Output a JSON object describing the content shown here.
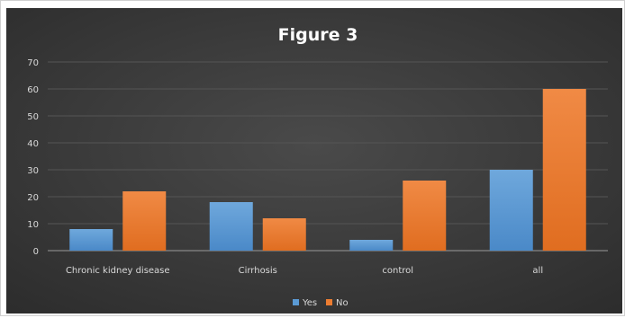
{
  "chart_data": {
    "type": "bar",
    "title": "Figure 3",
    "categories": [
      "Chronic kidney disease",
      "Cirrhosis",
      "control",
      "all"
    ],
    "series": [
      {
        "name": "Yes",
        "values": [
          8,
          18,
          4,
          30
        ],
        "color": "#5b9bd5"
      },
      {
        "name": "No",
        "values": [
          22,
          12,
          26,
          60
        ],
        "color": "#ed7d31"
      }
    ],
    "ylim": [
      0,
      70
    ],
    "yticks": [
      0,
      10,
      20,
      30,
      40,
      50,
      60,
      70
    ],
    "grid": true,
    "legend": "bottom-center",
    "background": "#3b3b3b",
    "text_color": "#ffffff",
    "axis_text_color": "#d9d9d9"
  }
}
